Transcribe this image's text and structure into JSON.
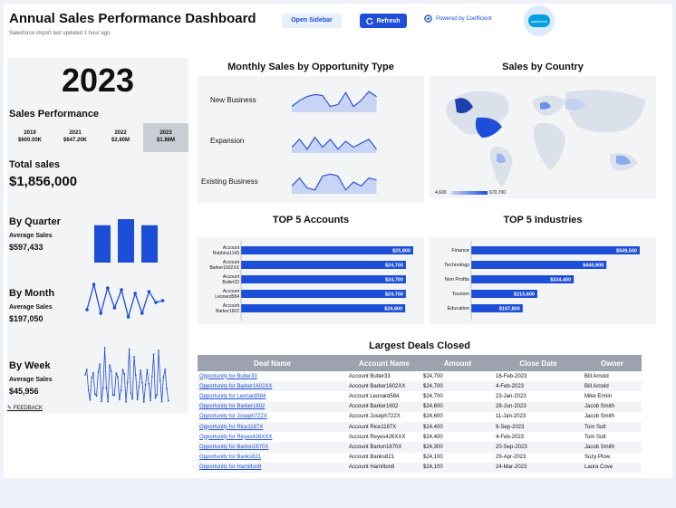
{
  "header": {
    "title": "Annual Sales Performance Dashboard",
    "subtitle": "Salesforce import last updated 1 hour ago",
    "open_sidebar": "Open Sidebar",
    "refresh": "Refresh",
    "powered_by": "Powered by Coefficient",
    "logo_text": "salesforce"
  },
  "summary": {
    "year": "2023",
    "performance_label": "Sales Performance",
    "years": [
      {
        "year": "2019",
        "value": "$600.00K"
      },
      {
        "year": "2021",
        "value": "$647.20K"
      },
      {
        "year": "2022",
        "value": "$2.80M"
      },
      {
        "year": "2023",
        "value": "$1.86M"
      }
    ],
    "total_label": "Total sales",
    "total_value": "$1,856,000",
    "quarter": {
      "title": "By Quarter",
      "sub": "Average Sales",
      "value": "$597,433",
      "bars": [
        0.86,
        1.0,
        0.86
      ]
    },
    "month": {
      "title": "By Month",
      "sub": "Average Sales",
      "value": "$197,050",
      "series": [
        0.3,
        1.0,
        0.2,
        0.9,
        0.35,
        0.85,
        0.1,
        0.75,
        0.2,
        0.8,
        0.5,
        0.55
      ]
    },
    "week": {
      "title": "By Week",
      "sub": "Average Sales",
      "value": "$45,956"
    },
    "feedback": "FEEDBACK"
  },
  "monthly_by_type": {
    "title": "Monthly Sales by Opportunity Type",
    "rows": [
      {
        "label": "New Business",
        "series": [
          0.2,
          0.5,
          0.7,
          0.8,
          0.75,
          0.2,
          0.3,
          0.9,
          0.2,
          0.5,
          0.95,
          0.7
        ]
      },
      {
        "label": "Expansion",
        "series": [
          0.2,
          0.6,
          0.1,
          0.7,
          0.2,
          0.6,
          0.1,
          0.5,
          0.2,
          0.4,
          0.6,
          0.1
        ]
      },
      {
        "label": "Existing Business",
        "series": [
          0.3,
          0.7,
          0.2,
          0.1,
          0.8,
          0.9,
          0.8,
          0.1,
          0.5,
          0.3,
          0.7,
          0.6
        ]
      }
    ]
  },
  "country": {
    "title": "Sales by Country",
    "legend_min": "4,600",
    "legend_max": "670,700"
  },
  "top_accounts": {
    "title": "TOP 5 Accounts",
    "items": [
      {
        "label": "Account Robbins1143",
        "value": "$25,800",
        "amount": 25800
      },
      {
        "label": "Account Barker1602XX",
        "value": "$24,700",
        "amount": 24700
      },
      {
        "label": "Account Butler33",
        "value": "$24,700",
        "amount": 24700
      },
      {
        "label": "Account Leonard584",
        "value": "$24,700",
        "amount": 24700
      },
      {
        "label": "Account Barker1602",
        "value": "$24,600",
        "amount": 24600
      }
    ]
  },
  "top_industries": {
    "title": "TOP 5 Industries",
    "items": [
      {
        "label": "Finance",
        "value": "$549,500",
        "amount": 549500
      },
      {
        "label": "Technology",
        "value": "$440,900",
        "amount": 440900
      },
      {
        "label": "Non Profits",
        "value": "$334,400",
        "amount": 334400
      },
      {
        "label": "Tourism",
        "value": "$215,600",
        "amount": 215600
      },
      {
        "label": "Education",
        "value": "$167,800",
        "amount": 167800
      }
    ]
  },
  "deals": {
    "title": "Largest Deals Closed",
    "columns": [
      "Deal Name",
      "Account Name",
      "Amount",
      "Close Date",
      "Owner"
    ],
    "rows": [
      [
        "Opportunity for Butler33",
        "Account Butler33",
        "$24,700",
        "16-Feb-2023",
        "Bill Arnold"
      ],
      [
        "Opportunity for Barker1602XX",
        "Account Barker1602XX",
        "$24,700",
        "4-Feb-2023",
        "Bill Arnold"
      ],
      [
        "Opportunity for Leonard584",
        "Account Leonard584",
        "$24,700",
        "23-Jan-2023",
        "Mike Ermin"
      ],
      [
        "Opportunity for Barker1602",
        "Account Barker1602",
        "$24,600",
        "28-Jun-2023",
        "Jacob Smith"
      ],
      [
        "Opportunity for Joseph722X",
        "Account Joseph722X",
        "$24,600",
        "11-Jan-2023",
        "Jacob Smith"
      ],
      [
        "Opportunity for Rice1187X",
        "Account Rice1187X",
        "$24,400",
        "8-Sep-2023",
        "Tom Sutt"
      ],
      [
        "Opportunity for Reyes426XXX",
        "Account Reyes426XXX",
        "$24,400",
        "4-Feb-2023",
        "Tom Sutt"
      ],
      [
        "Opportunity for Barton1670X",
        "Account Barton1670X",
        "$24,300",
        "20-Sep-2023",
        "Jacob Smith"
      ],
      [
        "Opportunity for Banks821",
        "Account Banks821",
        "$24,100",
        "29-Apr-2023",
        "Suzy Plow"
      ],
      [
        "Opportunity for Hamilton8",
        "Account Hamilton8",
        "$24,100",
        "24-Mar-2023",
        "Laura Cove"
      ]
    ]
  },
  "colors": {
    "accent": "#1d4ed8",
    "panel": "#f3f4f6"
  }
}
